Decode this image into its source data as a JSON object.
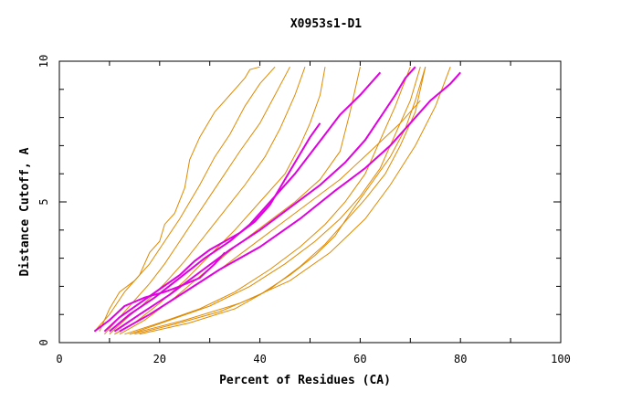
{
  "chart_data": {
    "type": "line",
    "title": "X0953s1-D1",
    "xlabel": "Percent of Residues (CA)",
    "ylabel": "Distance Cutoff, A",
    "xlim": [
      0,
      100
    ],
    "ylim": [
      0,
      10
    ],
    "xticks": [
      "0",
      "20",
      "40",
      "60",
      "80",
      "100"
    ],
    "yticks": [
      "0",
      "5",
      "10"
    ],
    "grid": false,
    "colors": {
      "orange": "#e08a00",
      "magenta": "#e000e0"
    },
    "series": [
      {
        "color": "orange",
        "x": [
          7,
          10,
          13,
          16,
          18,
          20,
          21,
          23,
          25,
          26,
          28,
          31,
          34,
          37,
          38,
          40
        ],
        "y": [
          0.4,
          1,
          1.8,
          2.4,
          3.2,
          3.6,
          4.2,
          4.6,
          5.5,
          6.5,
          7.3,
          8.2,
          8.8,
          9.4,
          9.7,
          9.8
        ]
      },
      {
        "color": "orange",
        "x": [
          8,
          10,
          12,
          15,
          18,
          21,
          24,
          28,
          31,
          34,
          37,
          40,
          43
        ],
        "y": [
          0.4,
          1.2,
          1.8,
          2.2,
          2.8,
          3.6,
          4.4,
          5.6,
          6.6,
          7.4,
          8.4,
          9.2,
          9.8
        ]
      },
      {
        "color": "orange",
        "x": [
          9,
          12,
          15,
          18,
          21,
          24,
          27,
          30,
          33,
          36,
          40,
          43,
          46
        ],
        "y": [
          0.3,
          0.9,
          1.5,
          2.1,
          2.8,
          3.6,
          4.4,
          5.2,
          6.0,
          6.8,
          7.8,
          8.8,
          9.8
        ]
      },
      {
        "color": "orange",
        "x": [
          10,
          13,
          17,
          21,
          25,
          29,
          33,
          37,
          41,
          44,
          47,
          49
        ],
        "y": [
          0.3,
          0.8,
          1.4,
          2.1,
          2.9,
          3.8,
          4.7,
          5.6,
          6.6,
          7.6,
          8.8,
          9.8
        ]
      },
      {
        "color": "orange",
        "x": [
          11,
          15,
          20,
          25,
          30,
          35,
          40,
          45,
          48,
          50,
          52,
          53
        ],
        "y": [
          0.3,
          0.7,
          1.4,
          2.2,
          3.1,
          4.0,
          5.0,
          6.0,
          7.0,
          7.8,
          8.8,
          9.8
        ]
      },
      {
        "color": "orange",
        "x": [
          12,
          17,
          23,
          29,
          35,
          41,
          47,
          52,
          56,
          58,
          60
        ],
        "y": [
          0.3,
          0.8,
          1.6,
          2.5,
          3.4,
          4.2,
          5.0,
          5.8,
          6.8,
          8.2,
          9.8
        ]
      },
      {
        "color": "orange",
        "x": [
          13,
          20,
          28,
          35,
          42,
          48,
          53,
          57,
          61,
          64,
          67,
          70
        ],
        "y": [
          0.3,
          0.7,
          1.2,
          1.8,
          2.6,
          3.4,
          4.2,
          5.0,
          6.0,
          7.2,
          8.4,
          9.8
        ]
      },
      {
        "color": "orange",
        "x": [
          14,
          22,
          30,
          38,
          45,
          51,
          56,
          60,
          64,
          67,
          70,
          72
        ],
        "y": [
          0.3,
          0.8,
          1.3,
          2.0,
          2.8,
          3.6,
          4.4,
          5.2,
          6.2,
          7.4,
          8.6,
          9.8
        ]
      },
      {
        "color": "orange",
        "x": [
          15,
          24,
          32,
          40,
          46,
          51,
          55,
          58,
          62,
          66,
          69,
          71,
          73
        ],
        "y": [
          0.3,
          0.7,
          1.1,
          1.7,
          2.4,
          3.1,
          3.8,
          4.6,
          5.6,
          6.6,
          7.6,
          8.6,
          9.8
        ]
      },
      {
        "color": "orange",
        "x": [
          16,
          26,
          35,
          42,
          48,
          53,
          57,
          61,
          65,
          68,
          71,
          73
        ],
        "y": [
          0.3,
          0.7,
          1.2,
          1.9,
          2.7,
          3.5,
          4.3,
          5.1,
          6.0,
          7.0,
          8.2,
          9.8
        ]
      },
      {
        "color": "orange",
        "x": [
          14,
          25,
          36,
          46,
          54,
          61,
          66,
          71,
          75,
          78
        ],
        "y": [
          0.3,
          0.8,
          1.4,
          2.2,
          3.2,
          4.4,
          5.6,
          7.0,
          8.4,
          9.8
        ]
      },
      {
        "color": "orange",
        "x": [
          11,
          18,
          25,
          32,
          38,
          44,
          50,
          56,
          62,
          68,
          72
        ],
        "y": [
          0.3,
          1.0,
          1.8,
          2.6,
          3.4,
          4.2,
          5.0,
          5.8,
          6.8,
          7.8,
          8.6
        ]
      },
      {
        "color": "magenta",
        "x": [
          7,
          10,
          13,
          17,
          21,
          24,
          28,
          31,
          33
        ],
        "y": [
          0.4,
          0.8,
          1.3,
          1.6,
          1.8,
          2.0,
          2.3,
          2.8,
          3.2
        ]
      },
      {
        "color": "magenta",
        "x": [
          9,
          12,
          16,
          20,
          24,
          27,
          30,
          33,
          36,
          39,
          42,
          44,
          46,
          48,
          50,
          52
        ],
        "y": [
          0.4,
          0.9,
          1.4,
          1.9,
          2.4,
          2.9,
          3.3,
          3.6,
          3.9,
          4.3,
          4.9,
          5.5,
          6.1,
          6.7,
          7.3,
          7.8
        ]
      },
      {
        "color": "magenta",
        "x": [
          10,
          14,
          19,
          24,
          29,
          34,
          38,
          41,
          44,
          47,
          50,
          53,
          56,
          60,
          64
        ],
        "y": [
          0.4,
          1.0,
          1.6,
          2.3,
          3.0,
          3.6,
          4.2,
          4.8,
          5.4,
          6.0,
          6.7,
          7.4,
          8.1,
          8.8,
          9.6
        ]
      },
      {
        "color": "magenta",
        "x": [
          11,
          16,
          22,
          28,
          34,
          40,
          46,
          52,
          57,
          61,
          64,
          67,
          69,
          71
        ],
        "y": [
          0.4,
          1.0,
          1.7,
          2.5,
          3.3,
          4.0,
          4.8,
          5.6,
          6.4,
          7.2,
          8.0,
          8.8,
          9.4,
          9.8
        ]
      },
      {
        "color": "magenta",
        "x": [
          12,
          18,
          25,
          32,
          40,
          48,
          55,
          61,
          66,
          70,
          74,
          78,
          80
        ],
        "y": [
          0.4,
          1.0,
          1.8,
          2.6,
          3.4,
          4.4,
          5.4,
          6.2,
          7.0,
          7.8,
          8.6,
          9.2,
          9.6
        ]
      }
    ]
  }
}
